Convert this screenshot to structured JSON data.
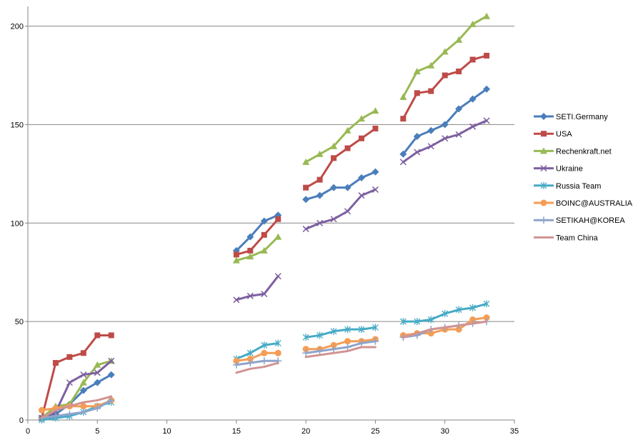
{
  "chart_data": {
    "type": "line",
    "title": "",
    "xlabel": "",
    "ylabel": "",
    "xlim": [
      0,
      35
    ],
    "ylim": [
      0,
      210
    ],
    "x_ticks": [
      0,
      5,
      10,
      15,
      20,
      25,
      30,
      35
    ],
    "y_ticks": [
      0,
      50,
      100,
      150,
      200
    ],
    "y_grid": true,
    "legend_position": "right",
    "x": [
      1,
      2,
      3,
      4,
      5,
      6,
      15,
      16,
      17,
      18,
      20,
      21,
      22,
      23,
      24,
      25,
      27,
      28,
      29,
      30,
      31,
      32,
      33
    ],
    "series": [
      {
        "name": "SETI.Germany",
        "color": "#4a7ebb",
        "marker": "diamond",
        "values": [
          1,
          3,
          8,
          15,
          19,
          23,
          86,
          93,
          101,
          104,
          112,
          114,
          118,
          118,
          123,
          126,
          135,
          144,
          147,
          150,
          158,
          163,
          168
        ]
      },
      {
        "name": "USA",
        "color": "#be4b48",
        "marker": "square",
        "values": [
          1,
          29,
          32,
          34,
          43,
          43,
          84,
          86,
          94,
          102,
          118,
          122,
          133,
          138,
          143,
          148,
          153,
          166,
          167,
          175,
          177,
          183,
          185
        ]
      },
      {
        "name": "Rechenkraft.net",
        "color": "#98b954",
        "marker": "triangle",
        "values": [
          1,
          7,
          8,
          19,
          28,
          30,
          81,
          83,
          86,
          93,
          131,
          135,
          139,
          147,
          153,
          157,
          164,
          177,
          180,
          187,
          193,
          201,
          205
        ]
      },
      {
        "name": "Ukraine",
        "color": "#7d60a0",
        "marker": "x",
        "values": [
          1,
          4,
          19,
          23,
          24,
          30,
          61,
          63,
          64,
          73,
          97,
          100,
          102,
          106,
          114,
          117,
          131,
          136,
          139,
          143,
          145,
          149,
          152
        ]
      },
      {
        "name": "Russia Team",
        "color": "#46aac5",
        "marker": "star",
        "values": [
          0,
          1,
          2,
          4,
          7,
          9,
          31,
          34,
          38,
          39,
          42,
          43,
          45,
          46,
          46,
          47,
          50,
          50,
          51,
          54,
          56,
          57,
          59
        ]
      },
      {
        "name": "BOINC@AUSTRALIA",
        "color": "#f59d56",
        "marker": "circle",
        "values": [
          5,
          6,
          7,
          7,
          7,
          10,
          30,
          31,
          34,
          34,
          36,
          36,
          38,
          40,
          40,
          41,
          43,
          44,
          44,
          46,
          46,
          51,
          52
        ]
      },
      {
        "name": "SETIKAH@KOREA",
        "color": "#8ea5cb",
        "marker": "plus",
        "values": [
          1,
          2,
          3,
          4,
          6,
          10,
          28,
          29,
          30,
          30,
          34,
          35,
          36,
          37,
          39,
          40,
          42,
          43,
          46,
          47,
          48,
          49,
          50
        ]
      },
      {
        "name": "Team China",
        "color": "#d19392",
        "marker": "none",
        "values": [
          1,
          5,
          7,
          9,
          10,
          12,
          24,
          26,
          27,
          29,
          32,
          33,
          34,
          35,
          37,
          37,
          42,
          44,
          46,
          47,
          48,
          49,
          50
        ]
      }
    ]
  }
}
